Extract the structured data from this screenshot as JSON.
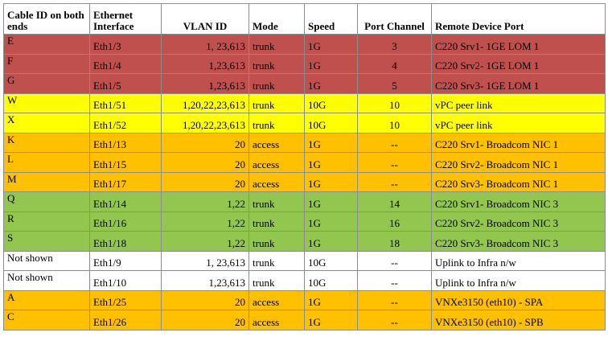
{
  "headers": {
    "cable_id": "Cable ID on both ends",
    "ethernet_interface": "Ethernet Interface",
    "vlan_id": "VLAN ID",
    "mode": "Mode",
    "speed": "Speed",
    "port_channel": "Port Channel",
    "remote_device_port": "Remote Device Port"
  },
  "row_colors": {
    "red": "#c0504d",
    "yellow": "#ffff00",
    "orange": "#ffc000",
    "green": "#92c64f",
    "white": "#ffffff"
  },
  "rows": [
    {
      "cable_id": "E",
      "interface": "Eth1/3",
      "vlan": "1, 23,613",
      "mode": "trunk",
      "speed": "1G",
      "port_channel": "3",
      "remote": "C220 Srv1- 1GE LOM 1",
      "color": "red"
    },
    {
      "cable_id": "F",
      "interface": "Eth1/4",
      "vlan": "1,23,613",
      "mode": "trunk",
      "speed": "1G",
      "port_channel": "4",
      "remote": "C220 Srv2- 1GE LOM 1",
      "color": "red"
    },
    {
      "cable_id": "G",
      "interface": "Eth1/5",
      "vlan": "1,23,613",
      "mode": "trunk",
      "speed": "1G",
      "port_channel": "5",
      "remote": "C220 Srv3- 1GE LOM 1",
      "color": "red"
    },
    {
      "cable_id": "W",
      "interface": "Eth1/51",
      "vlan": "1,20,22,23,613",
      "mode": "trunk",
      "speed": "10G",
      "port_channel": "10",
      "remote": "vPC peer link",
      "color": "yellow"
    },
    {
      "cable_id": "X",
      "interface": "Eth1/52",
      "vlan": "1,20,22,23,613",
      "mode": "trunk",
      "speed": "10G",
      "port_channel": "10",
      "remote": "vPC peer link",
      "color": "yellow"
    },
    {
      "cable_id": "K",
      "interface": "Eth1/13",
      "vlan": "20",
      "mode": "access",
      "speed": "1G",
      "port_channel": "--",
      "remote": "C220 Srv1- Broadcom NIC 1",
      "color": "orange"
    },
    {
      "cable_id": "L",
      "interface": "Eth1/15",
      "vlan": "20",
      "mode": "access",
      "speed": "1G",
      "port_channel": "--",
      "remote": "C220 Srv2- Broadcom NIC 1",
      "color": "orange"
    },
    {
      "cable_id": "M",
      "interface": "Eth1/17",
      "vlan": "20",
      "mode": "access",
      "speed": "1G",
      "port_channel": "--",
      "remote": "C220 Srv3- Broadcom NIC 1",
      "color": "orange"
    },
    {
      "cable_id": "Q",
      "interface": "Eth1/14",
      "vlan": "1,22",
      "mode": "trunk",
      "speed": "1G",
      "port_channel": "14",
      "remote": "C220 Srv1- Broadcom NIC 3",
      "color": "green"
    },
    {
      "cable_id": "R",
      "interface": "Eth1/16",
      "vlan": "1,22",
      "mode": "trunk",
      "speed": "1G",
      "port_channel": "16",
      "remote": "C220 Srv2- Broadcom NIC 3",
      "color": "green"
    },
    {
      "cable_id": "S",
      "interface": "Eth1/18",
      "vlan": "1,22",
      "mode": "trunk",
      "speed": "1G",
      "port_channel": "18",
      "remote": "C220 Srv3- Broadcom NIC 3",
      "color": "green"
    },
    {
      "cable_id": "Not shown",
      "interface": "Eth1/9",
      "vlan": "1, 23,613",
      "mode": "trunk",
      "speed": "10G",
      "port_channel": "--",
      "remote": "Uplink to Infra n/w",
      "color": "white"
    },
    {
      "cable_id": "Not shown",
      "interface": "Eth1/10",
      "vlan": "1,23,613",
      "mode": "trunk",
      "speed": "10G",
      "port_channel": "--",
      "remote": "Uplink to Infra n/w",
      "color": "white"
    },
    {
      "cable_id": "A",
      "interface": "Eth1/25",
      "vlan": "20",
      "mode": "access",
      "speed": "1G",
      "port_channel": "--",
      "remote": "VNXe3150 (eth10) - SPA",
      "color": "orange"
    },
    {
      "cable_id": "C",
      "interface": "Eth1/26",
      "vlan": "20",
      "mode": "access",
      "speed": "1G",
      "port_channel": "--",
      "remote": "VNXe3150 (eth10) - SPB",
      "color": "orange"
    }
  ]
}
